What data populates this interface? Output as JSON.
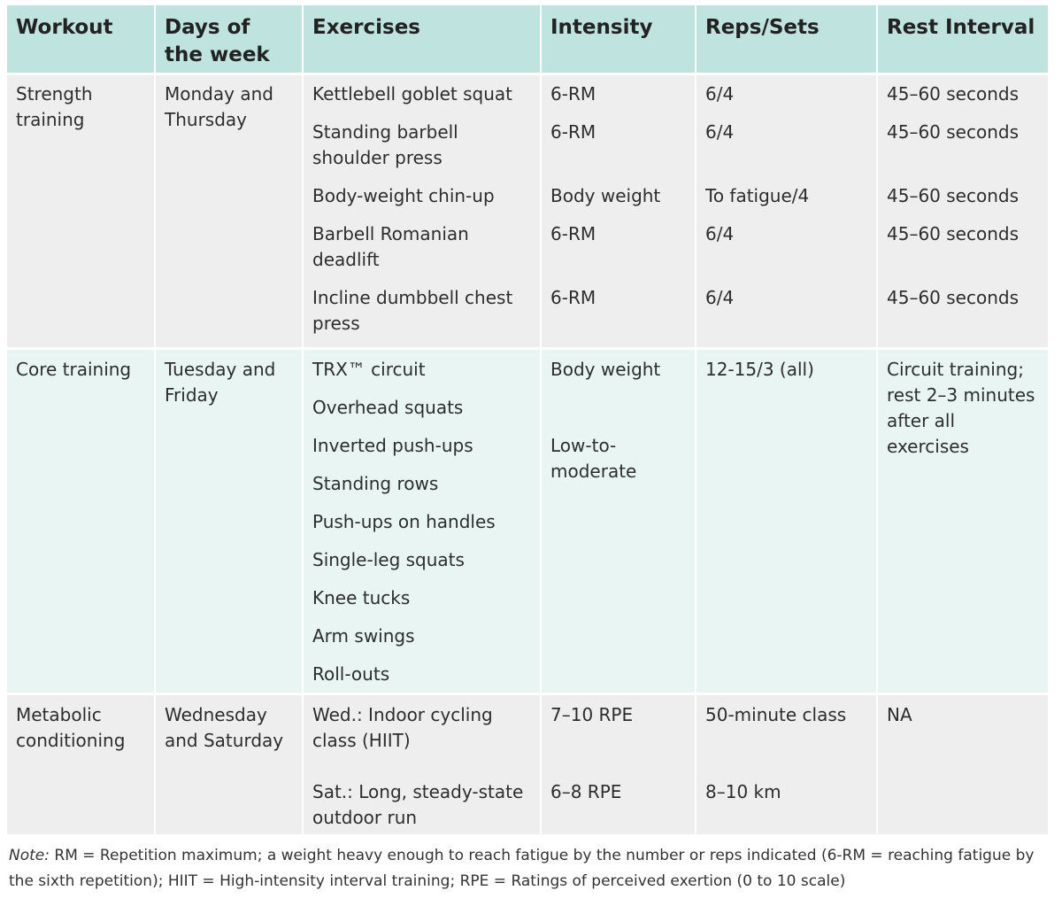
{
  "headers": {
    "workout": "Workout",
    "days": "Days of the week",
    "exercises": "Exercises",
    "intensity": "Intensity",
    "reps_sets": "Reps/Sets",
    "rest": "Rest Interval"
  },
  "rows": [
    {
      "workout": "Strength training",
      "days": "Monday and Thursday",
      "exercises": [
        "Kettlebell goblet squat",
        "Standing barbell shoulder press",
        "Body-weight chin-up",
        "Barbell Romanian deadlift",
        "Incline dumbbell chest press"
      ],
      "intensity": [
        "6-RM",
        "6-RM",
        "Body weight",
        "6-RM",
        "6-RM"
      ],
      "reps_sets": [
        "6/4",
        "6/4",
        "To fatigue/4",
        "6/4",
        "6/4"
      ],
      "rest": [
        "45–60 seconds",
        "45–60 seconds",
        "45–60 seconds",
        "45–60 seconds",
        "45–60 seconds"
      ]
    },
    {
      "workout": "Core training",
      "days": "Tuesday and Friday",
      "exercises": [
        "TRX™ circuit",
        "Overhead squats",
        "Inverted push-ups",
        "Standing rows",
        "Push-ups on handles",
        "Single-leg squats",
        "Knee tucks",
        "Arm swings",
        "Roll-outs"
      ],
      "intensity": [
        "Body weight",
        "Low-to-moderate"
      ],
      "reps_sets": [
        "12-15/3 (all)"
      ],
      "rest": [
        "Circuit training; rest 2–3 minutes after all exercises"
      ]
    },
    {
      "workout": "Metabolic conditioning",
      "days": "Wednesday and Saturday",
      "exercises": [
        "Wed.: Indoor cycling class (HIIT)",
        "Sat.: Long, steady-state outdoor run"
      ],
      "intensity": [
        "7–10 RPE",
        "6–8 RPE"
      ],
      "reps_sets": [
        "50-minute class",
        "8–10 km"
      ],
      "rest": [
        "NA"
      ]
    }
  ],
  "note": {
    "label": "Note:",
    "text": "RM = Repetition maximum; a weight heavy enough to reach fatigue by the number or reps indicated (6-RM = reaching fatigue by the sixth repetition); HIIT = High-intensity interval training; RPE = Ratings of perceived exertion (0 to 10 scale)"
  }
}
